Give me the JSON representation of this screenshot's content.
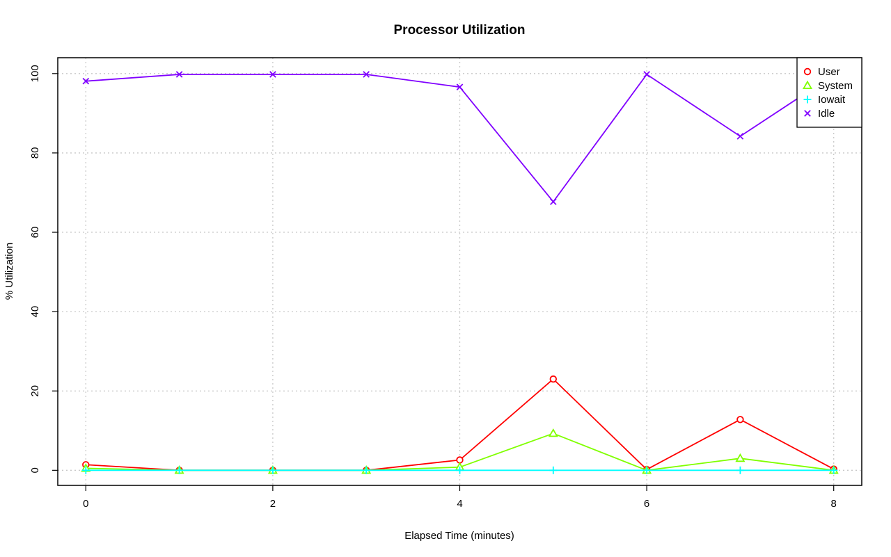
{
  "chart_data": {
    "type": "line",
    "title": "Processor Utilization",
    "xlabel": "Elapsed Time (minutes)",
    "ylabel": "% Utilization",
    "xlim": [
      -0.3,
      8.3
    ],
    "ylim": [
      -3.8,
      104
    ],
    "x_ticks": [
      0,
      2,
      4,
      6,
      8
    ],
    "y_ticks": [
      0,
      20,
      40,
      60,
      80,
      100
    ],
    "grid": true,
    "legend_position": "top-right",
    "x": [
      0,
      1,
      2,
      3,
      4,
      5,
      6,
      7,
      8
    ],
    "series": [
      {
        "name": "User",
        "color": "#ff0000",
        "marker": "circle",
        "values": [
          1.4,
          0.0,
          0.0,
          0.0,
          2.6,
          23.0,
          0.2,
          12.8,
          0.3
        ]
      },
      {
        "name": "System",
        "color": "#80ff00",
        "marker": "triangle",
        "values": [
          0.5,
          0.0,
          0.0,
          0.0,
          0.8,
          9.3,
          0.0,
          3.0,
          0.0
        ]
      },
      {
        "name": "Iowait",
        "color": "#00ffff",
        "marker": "plus",
        "values": [
          0.0,
          0.0,
          0.0,
          0.0,
          0.0,
          0.0,
          0.0,
          0.0,
          0.0
        ]
      },
      {
        "name": "Idle",
        "color": "#8000ff",
        "marker": "cross",
        "values": [
          98.1,
          99.8,
          99.8,
          99.8,
          96.6,
          67.7,
          99.8,
          84.2,
          99.7
        ]
      }
    ]
  }
}
